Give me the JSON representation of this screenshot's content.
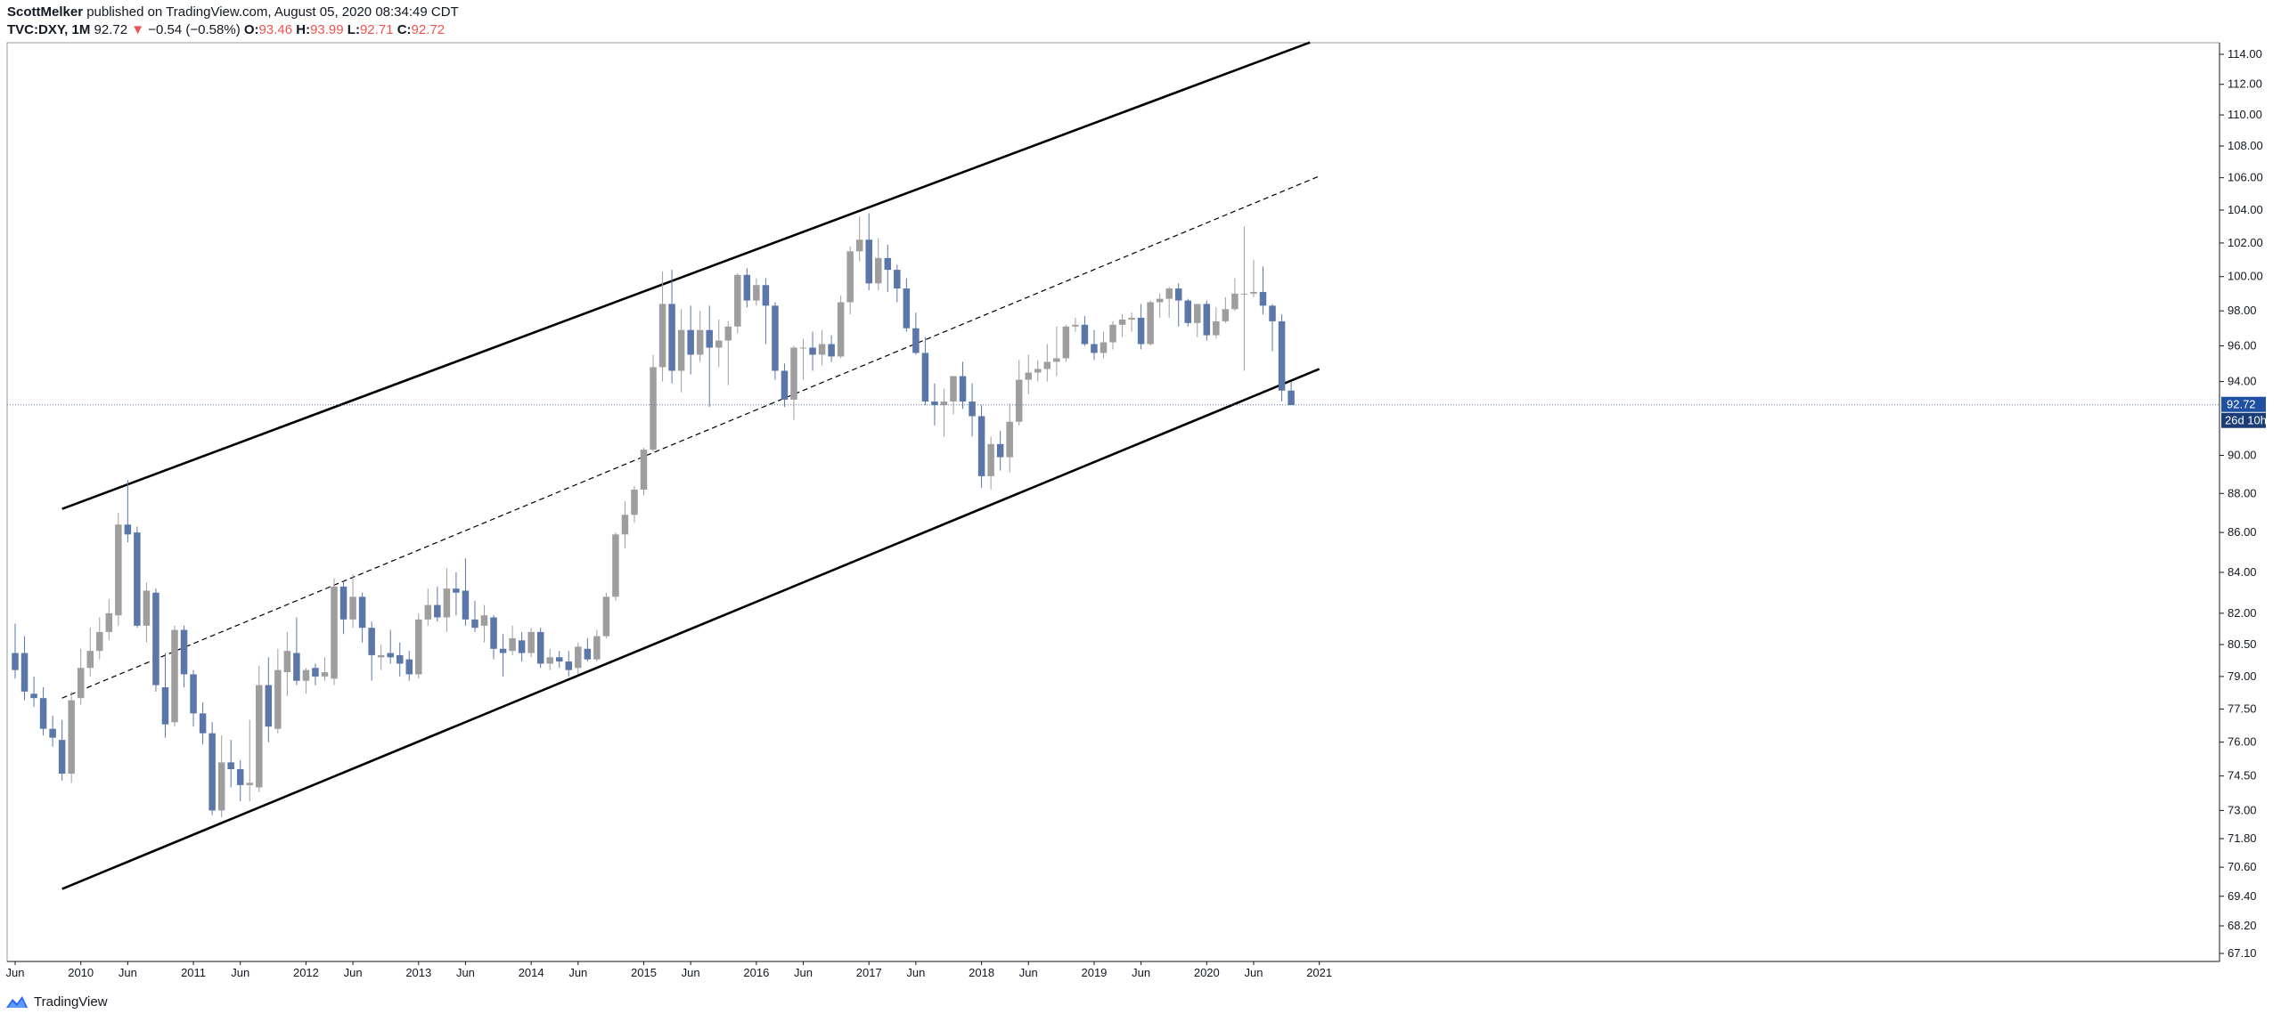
{
  "header": {
    "author": "ScottMelker",
    "published": " published on TradingView.com, August 05, 2020 08:34:49 CDT",
    "symbol": "TVC:DXY, 1M",
    "last": "92.72",
    "arrow": "▼",
    "change": "−0.54 (−0.58%)",
    "o_label": "O:",
    "o_value": "93.46",
    "h_label": "H:",
    "h_value": "93.99",
    "l_label": "L:",
    "l_value": "92.71",
    "c_label": "C:",
    "c_value": "92.72"
  },
  "price_axis": {
    "ticks": [
      "114.00",
      "112.00",
      "110.00",
      "108.00",
      "106.00",
      "104.00",
      "102.00",
      "100.00",
      "98.00",
      "96.00",
      "94.00",
      "92.72",
      "90.00",
      "88.00",
      "86.00",
      "84.00",
      "82.00",
      "80.50",
      "79.00",
      "77.50",
      "76.00",
      "74.50",
      "73.00",
      "71.80",
      "70.60",
      "69.40",
      "68.20",
      "67.10"
    ],
    "last_price_label": "92.72",
    "countdown_label": "26d 10h"
  },
  "time_axis": {
    "ticks": [
      "Jun",
      "2010",
      "Jun",
      "2011",
      "Jun",
      "2012",
      "Jun",
      "2013",
      "Jun",
      "2014",
      "Jun",
      "2015",
      "Jun",
      "2016",
      "Jun",
      "2017",
      "Jun",
      "2018",
      "Jun",
      "2019",
      "Jun",
      "2020",
      "Jun",
      "2021"
    ]
  },
  "footer": {
    "brand": "TradingView"
  },
  "colors": {
    "up": "#9e9e9e",
    "down": "#5b76a8",
    "line": "#000000",
    "last_label": "#1e4fa1",
    "countdown": "#1a3d78"
  },
  "chart_data": {
    "type": "candlestick",
    "title": "TVC:DXY, 1M",
    "interval": "1M",
    "start": "2009-06",
    "candles": [
      {
        "o": 80.1,
        "h": 81.5,
        "l": 78.9,
        "c": 79.3
      },
      {
        "o": 80.1,
        "h": 80.9,
        "l": 77.9,
        "c": 78.3
      },
      {
        "o": 78.2,
        "h": 79.0,
        "l": 77.6,
        "c": 78.0
      },
      {
        "o": 78.0,
        "h": 78.5,
        "l": 76.3,
        "c": 76.6
      },
      {
        "o": 76.6,
        "h": 77.2,
        "l": 75.8,
        "c": 76.2
      },
      {
        "o": 76.1,
        "h": 77.0,
        "l": 74.3,
        "c": 74.6
      },
      {
        "o": 74.6,
        "h": 78.3,
        "l": 74.2,
        "c": 77.9
      },
      {
        "o": 78.0,
        "h": 80.3,
        "l": 77.7,
        "c": 79.4
      },
      {
        "o": 79.4,
        "h": 81.3,
        "l": 79.0,
        "c": 80.2
      },
      {
        "o": 80.2,
        "h": 81.8,
        "l": 79.8,
        "c": 81.1
      },
      {
        "o": 81.1,
        "h": 82.7,
        "l": 80.7,
        "c": 82.0
      },
      {
        "o": 81.9,
        "h": 87.0,
        "l": 81.4,
        "c": 86.4
      },
      {
        "o": 86.4,
        "h": 88.7,
        "l": 85.5,
        "c": 85.9
      },
      {
        "o": 86.0,
        "h": 86.3,
        "l": 81.3,
        "c": 81.4
      },
      {
        "o": 81.4,
        "h": 83.5,
        "l": 80.6,
        "c": 83.1
      },
      {
        "o": 83.0,
        "h": 83.2,
        "l": 78.3,
        "c": 78.6
      },
      {
        "o": 78.5,
        "h": 80.1,
        "l": 76.2,
        "c": 76.8
      },
      {
        "o": 76.9,
        "h": 81.4,
        "l": 76.7,
        "c": 81.2
      },
      {
        "o": 81.2,
        "h": 81.4,
        "l": 78.5,
        "c": 79.1
      },
      {
        "o": 79.1,
        "h": 79.3,
        "l": 76.7,
        "c": 77.3
      },
      {
        "o": 77.3,
        "h": 77.8,
        "l": 75.9,
        "c": 76.4
      },
      {
        "o": 76.4,
        "h": 76.9,
        "l": 72.8,
        "c": 73.0
      },
      {
        "o": 73.0,
        "h": 76.3,
        "l": 72.7,
        "c": 75.1
      },
      {
        "o": 75.1,
        "h": 76.1,
        "l": 74.0,
        "c": 74.8
      },
      {
        "o": 74.8,
        "h": 75.2,
        "l": 73.4,
        "c": 74.1
      },
      {
        "o": 74.1,
        "h": 77.0,
        "l": 73.4,
        "c": 74.2
      },
      {
        "o": 74.0,
        "h": 79.5,
        "l": 73.8,
        "c": 78.6
      },
      {
        "o": 78.6,
        "h": 79.9,
        "l": 76.0,
        "c": 76.7
      },
      {
        "o": 76.6,
        "h": 80.3,
        "l": 76.4,
        "c": 79.3
      },
      {
        "o": 79.2,
        "h": 81.1,
        "l": 78.1,
        "c": 80.2
      },
      {
        "o": 80.1,
        "h": 81.8,
        "l": 78.6,
        "c": 78.8
      },
      {
        "o": 78.8,
        "h": 79.4,
        "l": 78.2,
        "c": 79.3
      },
      {
        "o": 79.4,
        "h": 79.6,
        "l": 78.6,
        "c": 79.0
      },
      {
        "o": 79.0,
        "h": 79.9,
        "l": 78.8,
        "c": 79.2
      },
      {
        "o": 78.9,
        "h": 83.7,
        "l": 78.6,
        "c": 83.3
      },
      {
        "o": 83.3,
        "h": 83.6,
        "l": 81.0,
        "c": 81.7
      },
      {
        "o": 81.7,
        "h": 83.9,
        "l": 81.3,
        "c": 82.8
      },
      {
        "o": 82.8,
        "h": 83.0,
        "l": 80.6,
        "c": 81.3
      },
      {
        "o": 81.3,
        "h": 81.6,
        "l": 78.8,
        "c": 80.0
      },
      {
        "o": 79.9,
        "h": 80.5,
        "l": 79.3,
        "c": 80.0
      },
      {
        "o": 80.1,
        "h": 81.2,
        "l": 79.6,
        "c": 79.9
      },
      {
        "o": 80.0,
        "h": 80.6,
        "l": 79.0,
        "c": 79.6
      },
      {
        "o": 79.8,
        "h": 80.2,
        "l": 78.8,
        "c": 79.1
      },
      {
        "o": 79.1,
        "h": 82.0,
        "l": 78.9,
        "c": 81.7
      },
      {
        "o": 81.7,
        "h": 83.2,
        "l": 81.4,
        "c": 82.4
      },
      {
        "o": 82.4,
        "h": 83.3,
        "l": 81.6,
        "c": 81.8
      },
      {
        "o": 81.8,
        "h": 84.2,
        "l": 81.1,
        "c": 83.2
      },
      {
        "o": 83.2,
        "h": 84.0,
        "l": 81.9,
        "c": 83.0
      },
      {
        "o": 83.1,
        "h": 84.7,
        "l": 81.4,
        "c": 81.7
      },
      {
        "o": 81.7,
        "h": 82.6,
        "l": 81.1,
        "c": 81.3
      },
      {
        "o": 81.4,
        "h": 82.4,
        "l": 80.6,
        "c": 81.9
      },
      {
        "o": 81.8,
        "h": 81.9,
        "l": 79.8,
        "c": 80.3
      },
      {
        "o": 80.3,
        "h": 81.0,
        "l": 79.0,
        "c": 80.1
      },
      {
        "o": 80.2,
        "h": 81.4,
        "l": 80.0,
        "c": 80.8
      },
      {
        "o": 80.7,
        "h": 81.1,
        "l": 79.7,
        "c": 80.1
      },
      {
        "o": 80.1,
        "h": 81.3,
        "l": 79.9,
        "c": 81.1
      },
      {
        "o": 81.1,
        "h": 81.3,
        "l": 79.4,
        "c": 79.6
      },
      {
        "o": 79.6,
        "h": 80.3,
        "l": 79.3,
        "c": 79.9
      },
      {
        "o": 79.9,
        "h": 80.2,
        "l": 79.4,
        "c": 79.7
      },
      {
        "o": 79.7,
        "h": 80.2,
        "l": 79.0,
        "c": 79.3
      },
      {
        "o": 79.4,
        "h": 80.6,
        "l": 79.1,
        "c": 80.4
      },
      {
        "o": 80.3,
        "h": 80.8,
        "l": 79.7,
        "c": 79.8
      },
      {
        "o": 79.8,
        "h": 81.2,
        "l": 79.7,
        "c": 80.9
      },
      {
        "o": 80.9,
        "h": 83.0,
        "l": 80.8,
        "c": 82.8
      },
      {
        "o": 82.8,
        "h": 86.0,
        "l": 82.6,
        "c": 85.9
      },
      {
        "o": 85.9,
        "h": 87.6,
        "l": 85.2,
        "c": 86.9
      },
      {
        "o": 86.9,
        "h": 88.4,
        "l": 86.5,
        "c": 88.2
      },
      {
        "o": 88.2,
        "h": 90.4,
        "l": 87.9,
        "c": 90.3
      },
      {
        "o": 90.3,
        "h": 95.5,
        "l": 90.2,
        "c": 94.8
      },
      {
        "o": 94.8,
        "h": 100.3,
        "l": 94.0,
        "c": 98.4
      },
      {
        "o": 98.4,
        "h": 100.4,
        "l": 93.9,
        "c": 94.6
      },
      {
        "o": 94.6,
        "h": 98.1,
        "l": 93.4,
        "c": 96.9
      },
      {
        "o": 96.9,
        "h": 98.3,
        "l": 94.4,
        "c": 95.5
      },
      {
        "o": 95.5,
        "h": 98.0,
        "l": 95.1,
        "c": 96.9
      },
      {
        "o": 96.9,
        "h": 98.3,
        "l": 92.6,
        "c": 95.9
      },
      {
        "o": 95.9,
        "h": 97.5,
        "l": 94.8,
        "c": 96.3
      },
      {
        "o": 96.3,
        "h": 97.4,
        "l": 93.8,
        "c": 97.1
      },
      {
        "o": 97.1,
        "h": 100.2,
        "l": 96.7,
        "c": 100.1
      },
      {
        "o": 100.1,
        "h": 100.5,
        "l": 98.2,
        "c": 98.6
      },
      {
        "o": 98.6,
        "h": 99.9,
        "l": 98.3,
        "c": 99.5
      },
      {
        "o": 99.5,
        "h": 99.9,
        "l": 96.1,
        "c": 98.3
      },
      {
        "o": 98.3,
        "h": 98.5,
        "l": 94.1,
        "c": 94.6
      },
      {
        "o": 94.6,
        "h": 95.0,
        "l": 92.6,
        "c": 93.0
      },
      {
        "o": 93.0,
        "h": 96.0,
        "l": 91.9,
        "c": 95.9
      },
      {
        "o": 95.9,
        "h": 96.4,
        "l": 94.1,
        "c": 95.9
      },
      {
        "o": 95.9,
        "h": 96.8,
        "l": 94.6,
        "c": 95.5
      },
      {
        "o": 95.5,
        "h": 96.9,
        "l": 94.9,
        "c": 96.1
      },
      {
        "o": 96.1,
        "h": 96.6,
        "l": 95.1,
        "c": 95.4
      },
      {
        "o": 95.4,
        "h": 98.9,
        "l": 95.3,
        "c": 98.5
      },
      {
        "o": 98.5,
        "h": 101.8,
        "l": 97.8,
        "c": 101.5
      },
      {
        "o": 101.5,
        "h": 103.6,
        "l": 100.9,
        "c": 102.2
      },
      {
        "o": 102.2,
        "h": 103.8,
        "l": 99.2,
        "c": 99.6
      },
      {
        "o": 99.6,
        "h": 102.3,
        "l": 99.2,
        "c": 101.1
      },
      {
        "o": 101.1,
        "h": 101.9,
        "l": 99.1,
        "c": 100.4
      },
      {
        "o": 100.4,
        "h": 100.7,
        "l": 98.5,
        "c": 99.3
      },
      {
        "o": 99.3,
        "h": 99.9,
        "l": 96.8,
        "c": 97.0
      },
      {
        "o": 97.0,
        "h": 97.9,
        "l": 95.5,
        "c": 95.6
      },
      {
        "o": 95.6,
        "h": 96.5,
        "l": 92.7,
        "c": 92.9
      },
      {
        "o": 92.9,
        "h": 93.9,
        "l": 91.6,
        "c": 92.7
      },
      {
        "o": 92.7,
        "h": 93.6,
        "l": 91.0,
        "c": 92.9
      },
      {
        "o": 92.9,
        "h": 94.3,
        "l": 92.2,
        "c": 94.3
      },
      {
        "o": 94.3,
        "h": 95.1,
        "l": 92.5,
        "c": 92.9
      },
      {
        "o": 92.9,
        "h": 93.9,
        "l": 91.0,
        "c": 92.1
      },
      {
        "o": 92.1,
        "h": 92.7,
        "l": 88.3,
        "c": 88.9
      },
      {
        "o": 88.9,
        "h": 91.0,
        "l": 88.2,
        "c": 90.6
      },
      {
        "o": 90.6,
        "h": 91.3,
        "l": 89.2,
        "c": 89.9
      },
      {
        "o": 89.9,
        "h": 92.8,
        "l": 89.1,
        "c": 91.8
      },
      {
        "o": 91.8,
        "h": 95.2,
        "l": 91.6,
        "c": 94.1
      },
      {
        "o": 94.1,
        "h": 95.5,
        "l": 93.3,
        "c": 94.5
      },
      {
        "o": 94.5,
        "h": 95.2,
        "l": 94.0,
        "c": 94.7
      },
      {
        "o": 94.7,
        "h": 96.1,
        "l": 94.0,
        "c": 95.1
      },
      {
        "o": 95.1,
        "h": 97.1,
        "l": 94.3,
        "c": 95.3
      },
      {
        "o": 95.3,
        "h": 97.2,
        "l": 95.1,
        "c": 97.1
      },
      {
        "o": 97.1,
        "h": 97.6,
        "l": 96.8,
        "c": 97.2
      },
      {
        "o": 97.2,
        "h": 97.7,
        "l": 96.0,
        "c": 96.1
      },
      {
        "o": 96.1,
        "h": 96.9,
        "l": 95.2,
        "c": 95.6
      },
      {
        "o": 95.6,
        "h": 96.8,
        "l": 95.3,
        "c": 96.2
      },
      {
        "o": 96.2,
        "h": 97.4,
        "l": 95.8,
        "c": 97.2
      },
      {
        "o": 97.2,
        "h": 97.8,
        "l": 96.5,
        "c": 97.5
      },
      {
        "o": 97.5,
        "h": 97.9,
        "l": 96.8,
        "c": 97.6
      },
      {
        "o": 97.6,
        "h": 98.4,
        "l": 95.8,
        "c": 96.1
      },
      {
        "o": 96.1,
        "h": 98.6,
        "l": 96.0,
        "c": 98.5
      },
      {
        "o": 98.5,
        "h": 99.0,
        "l": 97.6,
        "c": 98.7
      },
      {
        "o": 98.7,
        "h": 99.4,
        "l": 97.6,
        "c": 99.3
      },
      {
        "o": 99.3,
        "h": 99.6,
        "l": 97.1,
        "c": 98.6
      },
      {
        "o": 98.6,
        "h": 98.7,
        "l": 97.1,
        "c": 97.3
      },
      {
        "o": 97.3,
        "h": 98.4,
        "l": 96.5,
        "c": 98.4
      },
      {
        "o": 98.4,
        "h": 98.6,
        "l": 96.3,
        "c": 96.6
      },
      {
        "o": 96.6,
        "h": 98.2,
        "l": 96.4,
        "c": 97.4
      },
      {
        "o": 97.4,
        "h": 98.8,
        "l": 97.3,
        "c": 98.1
      },
      {
        "o": 98.1,
        "h": 99.9,
        "l": 98.0,
        "c": 99.0
      },
      {
        "o": 99.0,
        "h": 103.0,
        "l": 94.6,
        "c": 99.0
      },
      {
        "o": 99.0,
        "h": 101.0,
        "l": 98.8,
        "c": 99.1
      },
      {
        "o": 99.1,
        "h": 100.6,
        "l": 97.8,
        "c": 98.3
      },
      {
        "o": 98.3,
        "h": 98.4,
        "l": 95.7,
        "c": 97.4
      },
      {
        "o": 97.4,
        "h": 97.8,
        "l": 92.9,
        "c": 93.5
      },
      {
        "o": 93.5,
        "h": 94.0,
        "l": 92.7,
        "c": 92.7
      }
    ],
    "trendlines": [
      {
        "name": "upper",
        "style": "solid",
        "from": {
          "t": "2009-11",
          "v": 87.2
        },
        "to": {
          "t": "2020-12",
          "v": 114.8
        }
      },
      {
        "name": "middle",
        "style": "dashed",
        "from": {
          "t": "2009-11",
          "v": 78.0
        },
        "to": {
          "t": "2021-01",
          "v": 106.1
        }
      },
      {
        "name": "lower",
        "style": "solid",
        "from": {
          "t": "2009-11",
          "v": 69.7
        },
        "to": {
          "t": "2021-01",
          "v": 94.7
        }
      }
    ],
    "last_price": 92.72,
    "ylim": [
      66.8,
      114.8
    ],
    "scale": "logarithmic",
    "grid": false
  }
}
